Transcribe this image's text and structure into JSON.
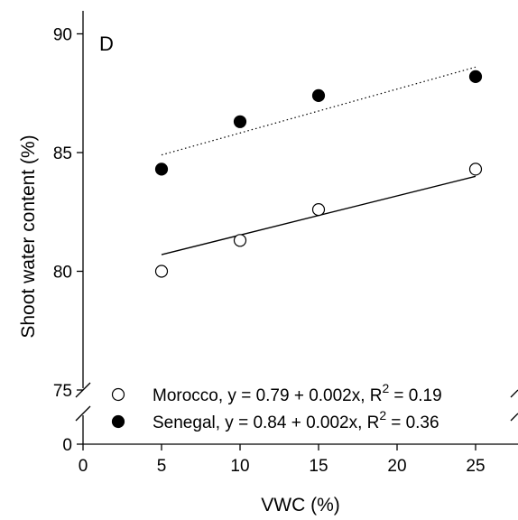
{
  "chart_data": {
    "type": "scatter",
    "panel_label": "D",
    "xlabel": "VWC (%)",
    "ylabel": "Shoot water content (%)",
    "xlim": [
      0,
      27.5
    ],
    "ylim_lower_segment": [
      0,
      0.4
    ],
    "ylim_upper_segment": [
      75,
      90.5
    ],
    "y_axis_broken": true,
    "xticks": [
      0,
      5,
      10,
      15,
      20,
      25
    ],
    "xtick_labels": [
      "0",
      "5",
      "10",
      "15",
      "20",
      "25"
    ],
    "yticks": [
      0,
      75,
      80,
      85,
      90
    ],
    "ytick_labels": [
      "0",
      "75",
      "80",
      "85",
      "90"
    ],
    "legend_position": "bottom",
    "series": [
      {
        "name": "Morocco",
        "marker": "open-circle",
        "x": [
          5,
          10,
          15,
          25
        ],
        "y": [
          80.0,
          81.3,
          82.6,
          84.3
        ],
        "fit": {
          "x": [
            5,
            25
          ],
          "y": [
            80.7,
            84.0
          ],
          "style": "solid"
        },
        "legend_text": "Morocco, y = 0.79 + 0.002x, R",
        "r2_label": "= 0.19",
        "superscript": "2"
      },
      {
        "name": "Senegal",
        "marker": "filled-circle",
        "x": [
          5,
          10,
          15,
          25
        ],
        "y": [
          84.3,
          86.3,
          87.4,
          88.2
        ],
        "fit": {
          "x": [
            5,
            25
          ],
          "y": [
            84.9,
            88.6
          ],
          "style": "dotted"
        },
        "legend_text": "Senegal, y = 0.84 + 0.002x, R",
        "r2_label": "= 0.36",
        "superscript": "2"
      }
    ]
  }
}
